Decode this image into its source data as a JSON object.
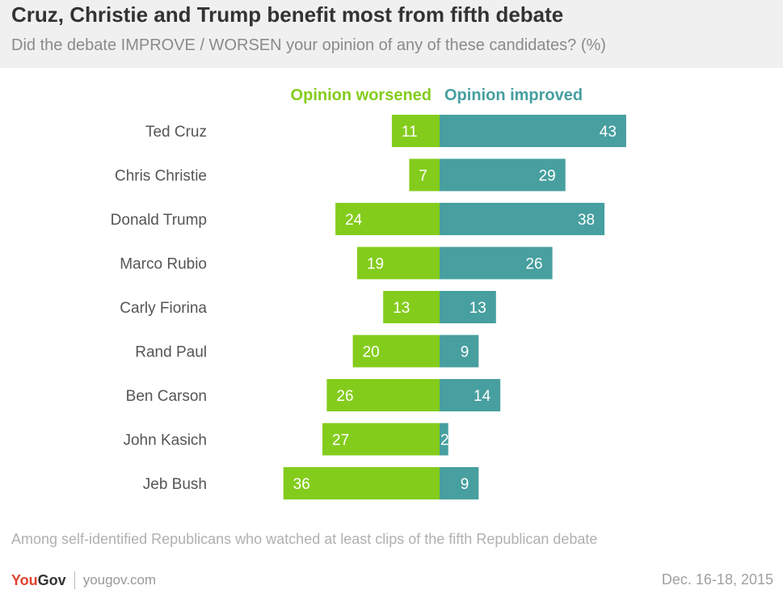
{
  "title": "Cruz, Christie and Trump benefit most from fifth debate",
  "subtitle": "Did the debate IMPROVE / WORSEN your opinion of any of these candidates? (%)",
  "colors": {
    "worsened": "#84cc1c",
    "improved": "#479f9f",
    "text": "#333333"
  },
  "chart_data": {
    "type": "bar",
    "orientation": "horizontal-diverging",
    "categories": [
      "Ted Cruz",
      "Chris Christie",
      "Donald Trump",
      "Marco Rubio",
      "Carly Fiorina",
      "Rand Paul",
      "Ben Carson",
      "John Kasich",
      "Jeb Bush"
    ],
    "series": [
      {
        "name": "Opinion worsened",
        "values": [
          11,
          7,
          24,
          19,
          13,
          20,
          26,
          27,
          36
        ]
      },
      {
        "name": "Opinion improved",
        "values": [
          43,
          29,
          38,
          26,
          13,
          9,
          14,
          2,
          9
        ]
      }
    ],
    "legend_position": "top"
  },
  "footnote": "Among self-identified Republicans who watched at least clips of the fifth Republican debate",
  "brand": {
    "you": "You",
    "gov": "Gov",
    "url": "yougov.com"
  },
  "date": "Dec. 16-18, 2015"
}
